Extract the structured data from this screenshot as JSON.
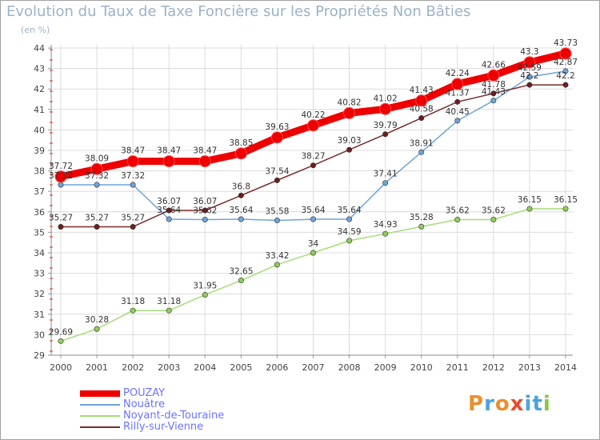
{
  "title": "Evolution du Taux de Taxe Foncière sur les Propriétés Non Bâties",
  "unit_label": "(en %)",
  "logo_text": "Proxiti",
  "logo_colors": [
    "#e8912b",
    "#4aa3df",
    "#e8912b",
    "#e84a2b",
    "#4aa3df",
    "#4aa3df",
    "#8cc63f"
  ],
  "chart_data": {
    "type": "line",
    "title": "Evolution du Taux de Taxe Foncière sur les Propriétés Non Bâties",
    "ylabel": "(en %)",
    "xlabel": "",
    "categories": [
      "2000",
      "2001",
      "2002",
      "2003",
      "2004",
      "2005",
      "2006",
      "2007",
      "2008",
      "2009",
      "2010",
      "2011",
      "2012",
      "2013",
      "2014"
    ],
    "ylim": [
      29,
      44
    ],
    "yticks": [
      29,
      30,
      31,
      32,
      33,
      34,
      35,
      36,
      37,
      38,
      39,
      40,
      41,
      42,
      43,
      44
    ],
    "grid": true,
    "series": [
      {
        "name": "POUZAY",
        "color": "#ee0000",
        "marker_fill": "#ee0000",
        "bold": true,
        "values": [
          37.72,
          38.09,
          38.47,
          38.47,
          38.47,
          38.85,
          39.63,
          40.22,
          40.82,
          41.02,
          41.43,
          42.24,
          42.66,
          43.3,
          43.73
        ],
        "labels": [
          "37.72",
          "38.09",
          "38.47",
          "38.47",
          "38.47",
          "38.85",
          "39.63",
          "40.22",
          "40.82",
          "41.02",
          "41.43",
          "42.24",
          "42.66",
          "43.3",
          "43.73"
        ]
      },
      {
        "name": "Nouâtre",
        "color": "#6fa4d6",
        "marker_fill": "#6fa4d6",
        "bold": false,
        "values": [
          37.32,
          37.32,
          37.32,
          35.64,
          35.62,
          35.64,
          35.58,
          35.64,
          35.64,
          37.41,
          38.91,
          40.45,
          41.43,
          42.59,
          42.87
        ],
        "labels": [
          "37.32",
          "37.32",
          "37.32",
          "35.64",
          "35.62",
          "35.64",
          "35.58",
          "35.64",
          "35.64",
          "37.41",
          "38.91",
          "40.45",
          "41.43",
          "42.59",
          "42.87"
        ]
      },
      {
        "name": "Noyant-de-Touraine",
        "color": "#a6dc78",
        "marker_fill": "#8fcc5a",
        "bold": false,
        "values": [
          29.69,
          30.28,
          31.18,
          31.18,
          31.95,
          32.65,
          33.42,
          34,
          34.59,
          34.93,
          35.28,
          35.62,
          35.62,
          36.15,
          36.15
        ],
        "labels": [
          "29.69",
          "30.28",
          "31.18",
          "31.18",
          "31.95",
          "32.65",
          "33.42",
          "34",
          "34.59",
          "34.93",
          "35.28",
          "35.62",
          "35.62",
          "36.15",
          "36.15"
        ]
      },
      {
        "name": "Rilly-sur-Vienne",
        "color": "#7b2b2b",
        "marker_fill": "#6b1e1e",
        "bold": false,
        "values": [
          35.27,
          35.27,
          35.27,
          36.07,
          36.07,
          36.8,
          37.54,
          38.27,
          39.03,
          39.79,
          40.58,
          41.37,
          41.78,
          42.2,
          42.2
        ],
        "labels": [
          "35.27",
          "35.27",
          "35.27",
          "36.07",
          "36.07",
          "36.8",
          "37.54",
          "38.27",
          "39.03",
          "39.79",
          "40.58",
          "41.37",
          "41.78",
          "42.2",
          "42.2"
        ]
      }
    ]
  }
}
